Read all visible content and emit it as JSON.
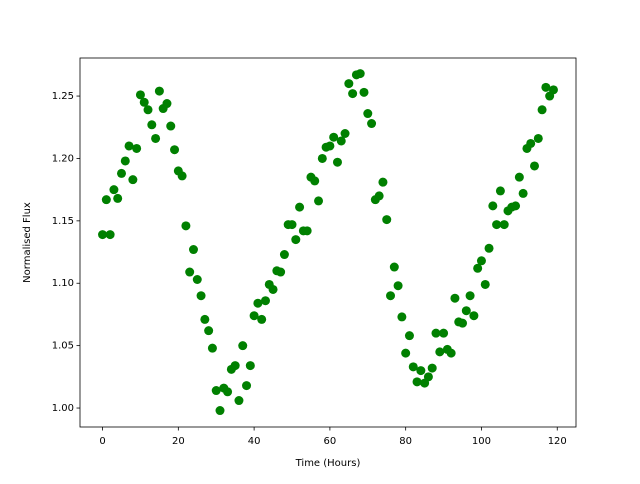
{
  "chart_data": {
    "type": "scatter",
    "x_label": "Time (Hours)",
    "y_label": "Normalised Flux",
    "color": "#008000",
    "x": [
      0,
      1,
      2,
      3,
      4,
      5,
      6,
      7,
      8,
      9,
      10,
      11,
      12,
      13,
      14,
      15,
      16,
      17,
      18,
      19,
      20,
      21,
      22,
      23,
      24,
      25,
      26,
      27,
      28,
      29,
      30,
      31,
      32,
      33,
      34,
      35,
      36,
      37,
      38,
      39,
      40,
      41,
      42,
      43,
      44,
      45,
      46,
      47,
      48,
      49,
      50,
      51,
      52,
      53,
      54,
      55,
      56,
      57,
      58,
      59,
      60,
      61,
      62,
      63,
      64,
      65,
      66,
      67,
      68,
      69,
      70,
      71,
      72,
      73,
      74,
      75,
      76,
      77,
      78,
      79,
      80,
      81,
      82,
      83,
      84,
      85,
      86,
      87,
      88,
      89,
      90,
      91,
      92,
      93,
      94,
      95,
      96,
      97,
      98,
      99,
      100,
      101,
      102,
      103,
      104,
      105,
      106,
      107,
      108,
      109,
      110,
      111,
      112,
      113,
      114,
      115,
      116,
      117,
      118,
      119
    ],
    "values": [
      1.139,
      1.167,
      1.139,
      1.175,
      1.168,
      1.188,
      1.198,
      1.21,
      1.183,
      1.208,
      1.251,
      1.245,
      1.239,
      1.227,
      1.216,
      1.254,
      1.24,
      1.244,
      1.226,
      1.207,
      1.19,
      1.186,
      1.146,
      1.109,
      1.127,
      1.103,
      1.09,
      1.071,
      1.062,
      1.048,
      1.014,
      0.998,
      1.016,
      1.013,
      1.031,
      1.034,
      1.006,
      1.05,
      1.018,
      1.034,
      1.074,
      1.084,
      1.071,
      1.086,
      1.099,
      1.095,
      1.11,
      1.109,
      1.123,
      1.147,
      1.147,
      1.135,
      1.161,
      1.142,
      1.142,
      1.185,
      1.182,
      1.166,
      1.2,
      1.209,
      1.21,
      1.217,
      1.197,
      1.214,
      1.22,
      1.26,
      1.252,
      1.267,
      1.268,
      1.253,
      1.236,
      1.228,
      1.167,
      1.17,
      1.181,
      1.151,
      1.09,
      1.113,
      1.098,
      1.073,
      1.044,
      1.058,
      1.033,
      1.021,
      1.03,
      1.02,
      1.025,
      1.032,
      1.06,
      1.045,
      1.06,
      1.047,
      1.044,
      1.088,
      1.069,
      1.068,
      1.078,
      1.09,
      1.074,
      1.112,
      1.118,
      1.099,
      1.128,
      1.162,
      1.147,
      1.174,
      1.147,
      1.158,
      1.161,
      1.162,
      1.185,
      1.172,
      1.208,
      1.212,
      1.194,
      1.216,
      1.239,
      1.257,
      1.25,
      1.255
    ],
    "xlim": [
      -5.95,
      124.95
    ],
    "xticks": [
      0,
      20,
      40,
      60,
      80,
      100,
      120
    ],
    "ylim": [
      0.9848,
      1.2805
    ],
    "yticks": [
      {
        "value": 1,
        "label": "1.00"
      },
      1.05,
      {
        "value": 1.1,
        "label": "1.10"
      },
      1.15,
      {
        "value": 1.2,
        "label": "1.20"
      },
      1.25
    ]
  }
}
